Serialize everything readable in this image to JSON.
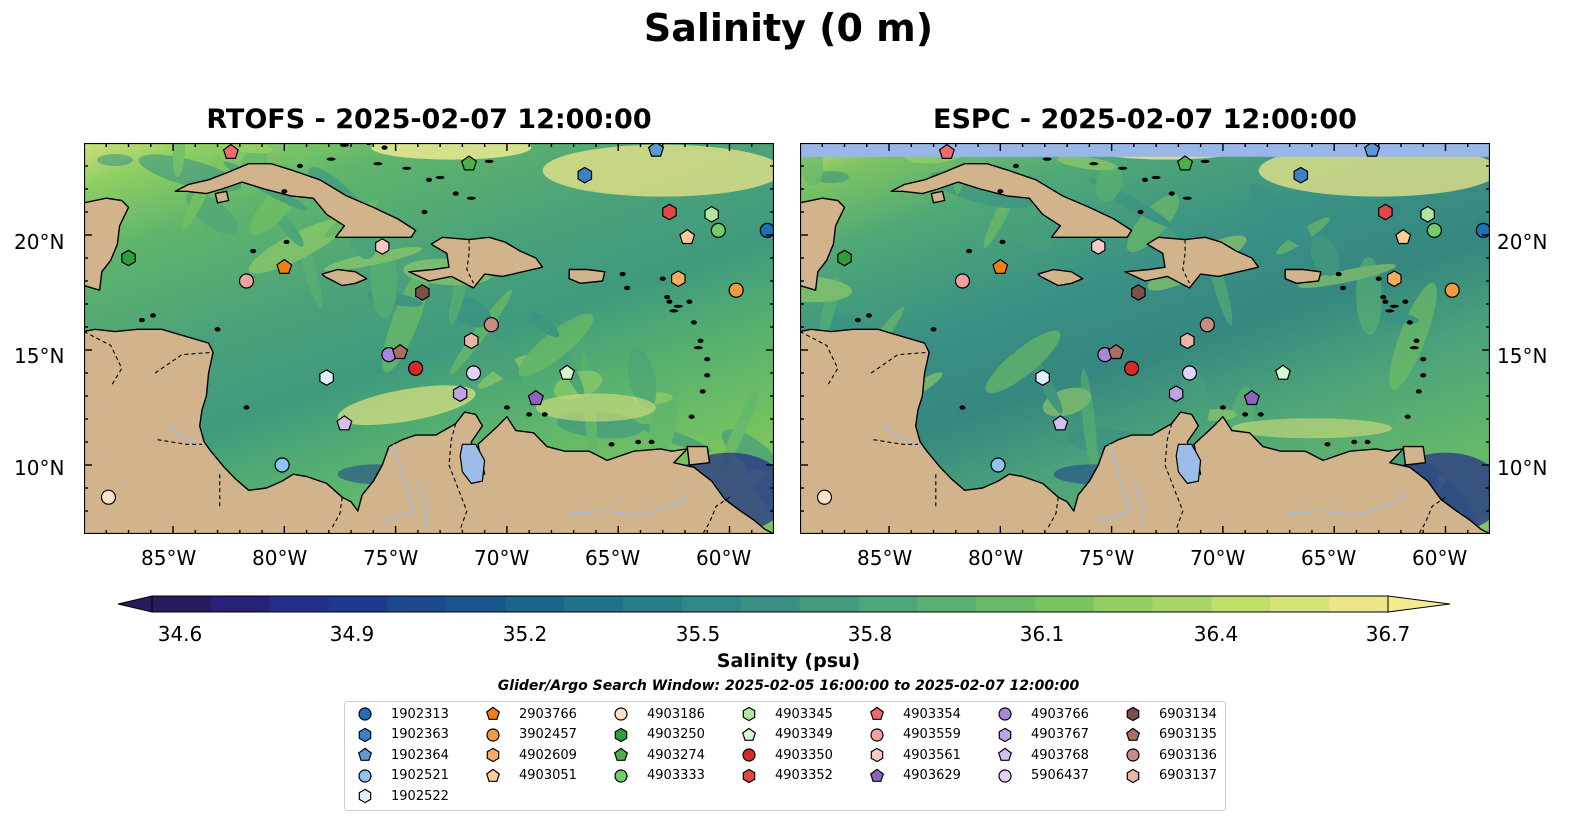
{
  "figure": {
    "suptitle": "Salinity (0 m)",
    "panels": [
      {
        "id": "rtofs",
        "title": "RTOFS - 2025-02-07 12:00:00"
      },
      {
        "id": "espc",
        "title": "ESPC - 2025-02-07 12:00:00"
      }
    ],
    "lat_ticks": [
      "20°N",
      "15°N",
      "10°N"
    ],
    "lon_ticks": [
      "85°W",
      "80°W",
      "75°W",
      "70°W",
      "65°W",
      "60°W"
    ],
    "colorbar": {
      "label": "Salinity (psu)",
      "ticks": [
        "34.6",
        "34.9",
        "35.2",
        "35.5",
        "35.8",
        "36.1",
        "36.4",
        "36.7"
      ],
      "range": [
        34.6,
        36.7
      ],
      "extend": "both",
      "colormap": [
        "#2b1a5c",
        "#24288a",
        "#1d3f8f",
        "#17578c",
        "#1c6e8a",
        "#2b8088",
        "#3a9085",
        "#4aa17a",
        "#5db470",
        "#79c45f",
        "#a0d464",
        "#c8e06c",
        "#eee58a"
      ]
    },
    "search_window": "Glider/Argo Search Window: 2025-02-05 16:00:00 to 2025-02-07 12:00:00",
    "colors": {
      "land": "#d2b48c",
      "lake": "#9bbde8",
      "river": "#a8b8d8",
      "espc_nodata": "#98b6e6"
    }
  },
  "chart_data": {
    "type": "map",
    "extent": {
      "lon": [
        -89,
        -58
      ],
      "lat": [
        7,
        24
      ]
    },
    "floats": [
      {
        "id": "1902313",
        "marker": "circle",
        "color": "#1f6fb5",
        "lon": -58.3,
        "lat": 20.2
      },
      {
        "id": "1902363",
        "marker": "hexagon",
        "color": "#3b82c4",
        "lon": -66.5,
        "lat": 22.6
      },
      {
        "id": "1902364",
        "marker": "pentagon",
        "color": "#5b9ad6",
        "lon": -63.3,
        "lat": 23.7
      },
      {
        "id": "1902521",
        "marker": "circle",
        "color": "#8ec3ee",
        "lon": -80.1,
        "lat": 10.0
      },
      {
        "id": "1902522",
        "marker": "hexagon",
        "color": "#dfeefc",
        "lon": -78.1,
        "lat": 13.8
      },
      {
        "id": "2903766",
        "marker": "pentagon",
        "color": "#f07f12",
        "lon": -80.0,
        "lat": 18.6
      },
      {
        "id": "3902457",
        "marker": "circle",
        "color": "#f59a3c",
        "lon": -59.7,
        "lat": 17.6
      },
      {
        "id": "4902609",
        "marker": "hexagon",
        "color": "#f5ad62",
        "lon": -62.3,
        "lat": 18.1
      },
      {
        "id": "4903051",
        "marker": "pentagon",
        "color": "#f9cd98",
        "lon": -61.9,
        "lat": 19.9
      },
      {
        "id": "4903186",
        "marker": "circle",
        "color": "#fbe3c8",
        "lon": -87.9,
        "lat": 8.6
      },
      {
        "id": "4903250",
        "marker": "hexagon",
        "color": "#2e9d3a",
        "lon": -87.0,
        "lat": 19.0
      },
      {
        "id": "4903274",
        "marker": "pentagon",
        "color": "#4bb04a",
        "lon": -71.7,
        "lat": 23.1
      },
      {
        "id": "4903333",
        "marker": "circle",
        "color": "#72cd6a",
        "lon": -60.5,
        "lat": 20.2
      },
      {
        "id": "4903345",
        "marker": "hexagon",
        "color": "#aee8a0",
        "lon": -60.8,
        "lat": 20.9
      },
      {
        "id": "4903349",
        "marker": "pentagon",
        "color": "#d9f7cf",
        "lon": -67.3,
        "lat": 14.0
      },
      {
        "id": "4903350",
        "marker": "circle",
        "color": "#d42a2a",
        "lon": -74.1,
        "lat": 14.2
      },
      {
        "id": "4903352",
        "marker": "hexagon",
        "color": "#e04848",
        "lon": -62.7,
        "lat": 21.0
      },
      {
        "id": "4903354",
        "marker": "pentagon",
        "color": "#ef6b6b",
        "lon": -82.4,
        "lat": 23.6
      },
      {
        "id": "4903559",
        "marker": "circle",
        "color": "#f4a0a0",
        "lon": -81.7,
        "lat": 18.0
      },
      {
        "id": "4903561",
        "marker": "hexagon",
        "color": "#fac8c8",
        "lon": -75.6,
        "lat": 19.5
      },
      {
        "id": "4903629",
        "marker": "pentagon",
        "color": "#8c64c0",
        "lon": -68.7,
        "lat": 12.9
      },
      {
        "id": "4903766",
        "marker": "circle",
        "color": "#a988dc",
        "lon": -75.3,
        "lat": 14.8
      },
      {
        "id": "4903767",
        "marker": "hexagon",
        "color": "#bda2e6",
        "lon": -72.1,
        "lat": 13.1
      },
      {
        "id": "4903768",
        "marker": "pentagon",
        "color": "#d4c0f0",
        "lon": -77.3,
        "lat": 11.8
      },
      {
        "id": "5906437",
        "marker": "circle",
        "color": "#e3d2f8",
        "lon": -71.5,
        "lat": 14.0
      },
      {
        "id": "6903134",
        "marker": "hexagon",
        "color": "#7a5048",
        "lon": -73.8,
        "lat": 17.5
      },
      {
        "id": "6903135",
        "marker": "pentagon",
        "color": "#a87060",
        "lon": -74.8,
        "lat": 14.9
      },
      {
        "id": "6903136",
        "marker": "circle",
        "color": "#c98c80",
        "lon": -70.7,
        "lat": 16.1
      },
      {
        "id": "6903137",
        "marker": "hexagon",
        "color": "#e8b6a8",
        "lon": -71.6,
        "lat": 15.4
      }
    ]
  }
}
